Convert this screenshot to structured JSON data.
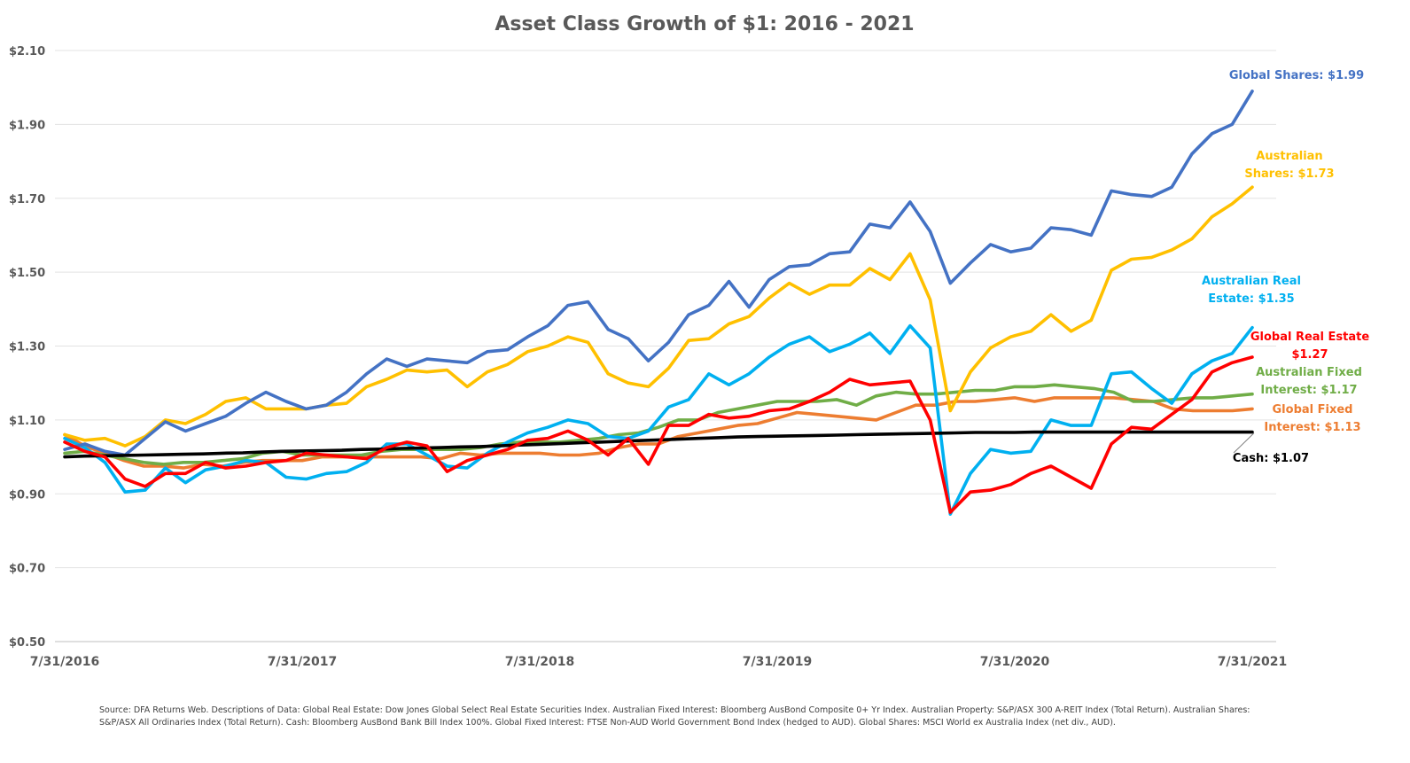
{
  "chart_data": {
    "type": "line",
    "title": "Asset Class Growth of $1: 2016 - 2021",
    "xlabel": "",
    "ylabel": "",
    "ylim": [
      0.5,
      2.1
    ],
    "yticks": [
      0.5,
      0.7,
      0.9,
      1.1,
      1.3,
      1.5,
      1.7,
      1.9,
      2.1
    ],
    "ytick_labels": [
      "$0.50",
      "$0.70",
      "$0.90",
      "$1.10",
      "$1.30",
      "$1.50",
      "$1.70",
      "$1.90",
      "$2.10"
    ],
    "xtick_labels": [
      "7/31/2016",
      "7/31/2017",
      "7/31/2018",
      "7/31/2019",
      "7/31/2020",
      "7/31/2021"
    ],
    "months_per_tick": 12,
    "grid": true,
    "legend": "none",
    "series": [
      {
        "color": "#ED7D31",
        "values": [
          1.06,
          1.03,
          1.01,
          0.99,
          0.975,
          0.975,
          0.97,
          0.98,
          0.975,
          0.985,
          0.99,
          0.99,
          0.99,
          1.0,
          1.0,
          1.0,
          1.0,
          1.0,
          1.0,
          0.995,
          1.01,
          1.005,
          1.01,
          1.01,
          1.01,
          1.005,
          1.005,
          1.01,
          1.025,
          1.035,
          1.035,
          1.055,
          1.065,
          1.075,
          1.085,
          1.09,
          1.105,
          1.12,
          1.115,
          1.11,
          1.105,
          1.1,
          1.12,
          1.14,
          1.14,
          1.15,
          1.15,
          1.155,
          1.16,
          1.15,
          1.16,
          1.16,
          1.16,
          1.16,
          1.155,
          1.15,
          1.13,
          1.125,
          1.125,
          1.125,
          1.13
        ]
      },
      {
        "color": "#70AD47",
        "values": [
          1.01,
          1.015,
          1.005,
          0.995,
          0.985,
          0.98,
          0.985,
          0.985,
          0.99,
          0.995,
          1.01,
          1.015,
          1.005,
          1.005,
          1.005,
          1.005,
          1.015,
          1.02,
          1.02,
          1.02,
          1.02,
          1.025,
          1.035,
          1.04,
          1.04,
          1.04,
          1.045,
          1.05,
          1.06,
          1.065,
          1.08,
          1.1,
          1.1,
          1.12,
          1.13,
          1.14,
          1.15,
          1.15,
          1.15,
          1.155,
          1.14,
          1.165,
          1.175,
          1.17,
          1.17,
          1.175,
          1.18,
          1.18,
          1.19,
          1.19,
          1.195,
          1.19,
          1.185,
          1.175,
          1.15,
          1.15,
          1.155,
          1.16,
          1.16,
          1.165,
          1.17
        ]
      },
      {
        "color": "#00B0F0",
        "values": [
          1.05,
          1.025,
          0.985,
          0.905,
          0.91,
          0.97,
          0.93,
          0.965,
          0.975,
          0.99,
          0.985,
          0.945,
          0.94,
          0.955,
          0.96,
          0.985,
          1.035,
          1.035,
          1.005,
          0.975,
          0.97,
          1.01,
          1.04,
          1.065,
          1.08,
          1.1,
          1.09,
          1.055,
          1.05,
          1.07,
          1.135,
          1.155,
          1.225,
          1.195,
          1.225,
          1.27,
          1.305,
          1.325,
          1.285,
          1.305,
          1.335,
          1.28,
          1.355,
          1.295,
          0.845,
          0.955,
          1.02,
          1.01,
          1.015,
          1.1,
          1.085,
          1.085,
          1.225,
          1.23,
          1.185,
          1.145,
          1.225,
          1.26,
          1.28,
          1.35
        ]
      },
      {
        "color": "#FFC000",
        "values": [
          1.06,
          1.045,
          1.05,
          1.03,
          1.055,
          1.1,
          1.09,
          1.115,
          1.15,
          1.16,
          1.13,
          1.13,
          1.13,
          1.14,
          1.145,
          1.19,
          1.21,
          1.235,
          1.23,
          1.235,
          1.19,
          1.23,
          1.25,
          1.285,
          1.3,
          1.325,
          1.31,
          1.225,
          1.2,
          1.19,
          1.24,
          1.315,
          1.32,
          1.36,
          1.38,
          1.43,
          1.47,
          1.44,
          1.465,
          1.465,
          1.51,
          1.48,
          1.55,
          1.425,
          1.125,
          1.23,
          1.295,
          1.325,
          1.34,
          1.385,
          1.34,
          1.37,
          1.505,
          1.535,
          1.54,
          1.56,
          1.59,
          1.65,
          1.685,
          1.73
        ]
      },
      {
        "color": "#4472C4",
        "values": [
          1.02,
          1.035,
          1.015,
          1.005,
          1.05,
          1.095,
          1.07,
          1.09,
          1.11,
          1.145,
          1.175,
          1.15,
          1.13,
          1.14,
          1.175,
          1.225,
          1.265,
          1.245,
          1.265,
          1.26,
          1.255,
          1.285,
          1.29,
          1.325,
          1.355,
          1.41,
          1.42,
          1.345,
          1.32,
          1.26,
          1.31,
          1.385,
          1.41,
          1.475,
          1.405,
          1.48,
          1.515,
          1.52,
          1.55,
          1.555,
          1.63,
          1.62,
          1.69,
          1.61,
          1.47,
          1.525,
          1.575,
          1.555,
          1.565,
          1.62,
          1.615,
          1.6,
          1.72,
          1.71,
          1.705,
          1.73,
          1.82,
          1.875,
          1.9,
          1.99
        ]
      },
      {
        "color": "#000000",
        "values": [
          1.0,
          1.002,
          1.003,
          1.004,
          1.005,
          1.006,
          1.007,
          1.008,
          1.01,
          1.011,
          1.013,
          1.015,
          1.016,
          1.017,
          1.018,
          1.02,
          1.021,
          1.023,
          1.024,
          1.025,
          1.027,
          1.028,
          1.03,
          1.032,
          1.034,
          1.036,
          1.038,
          1.04,
          1.042,
          1.044,
          1.046,
          1.048,
          1.05,
          1.052,
          1.054,
          1.055,
          1.056,
          1.057,
          1.058,
          1.059,
          1.06,
          1.061,
          1.062,
          1.063,
          1.064,
          1.065,
          1.066,
          1.066,
          1.066,
          1.067,
          1.067,
          1.067,
          1.067,
          1.067,
          1.067,
          1.067,
          1.067,
          1.067,
          1.067,
          1.067,
          1.067
        ]
      },
      {
        "color": "#FF0000",
        "values": [
          1.04,
          1.015,
          1.0,
          0.94,
          0.92,
          0.955,
          0.955,
          0.985,
          0.97,
          0.975,
          0.985,
          0.99,
          1.01,
          1.005,
          1.0,
          0.995,
          1.025,
          1.04,
          1.03,
          0.96,
          0.99,
          1.005,
          1.02,
          1.045,
          1.05,
          1.07,
          1.045,
          1.005,
          1.05,
          0.98,
          1.085,
          1.085,
          1.115,
          1.105,
          1.11,
          1.125,
          1.13,
          1.15,
          1.175,
          1.21,
          1.195,
          1.2,
          1.205,
          1.1,
          0.85,
          0.905,
          0.91,
          0.925,
          0.955,
          0.975,
          0.945,
          0.915,
          1.035,
          1.08,
          1.075,
          1.115,
          1.155,
          1.23,
          1.255,
          1.27
        ]
      }
    ],
    "annotations": [
      {
        "lines": [
          "Global Shares: $1.99"
        ],
        "color": "#4472C4"
      },
      {
        "lines": [
          "Australian",
          "Shares: $1.73"
        ],
        "color": "#FFC000"
      },
      {
        "lines": [
          "Australian Real",
          "Estate: $1.35"
        ],
        "color": "#00B0F0"
      },
      {
        "lines": [
          "Global Real Estate",
          "$1.27"
        ],
        "color": "#FF0000"
      },
      {
        "lines": [
          "Australian Fixed",
          "Interest: $1.17"
        ],
        "color": "#70AD47"
      },
      {
        "lines": [
          "Global Fixed",
          "Interest:  $1.13"
        ],
        "color": "#ED7D31"
      },
      {
        "lines": [
          "Cash: $1.07"
        ],
        "color": "#000000"
      }
    ]
  },
  "source_note": {
    "line1": "Source: DFA Returns Web. Descriptions of Data: Global Real Estate: Dow Jones Global Select Real Estate Securities Index. Australian Fixed Interest: Bloomberg AusBond Composite 0+ Yr Index. Australian Property: S&P/ASX 300 A-REIT Index (Total Return). Australian Shares:",
    "line2": "S&P/ASX All Ordinaries Index (Total Return). Cash: Bloomberg AusBond Bank Bill Index 100%. Global Fixed Interest: FTSE Non-AUD World Government Bond Index (hedged to AUD). Global Shares: MSCI World ex Australia Index (net div., AUD)."
  }
}
